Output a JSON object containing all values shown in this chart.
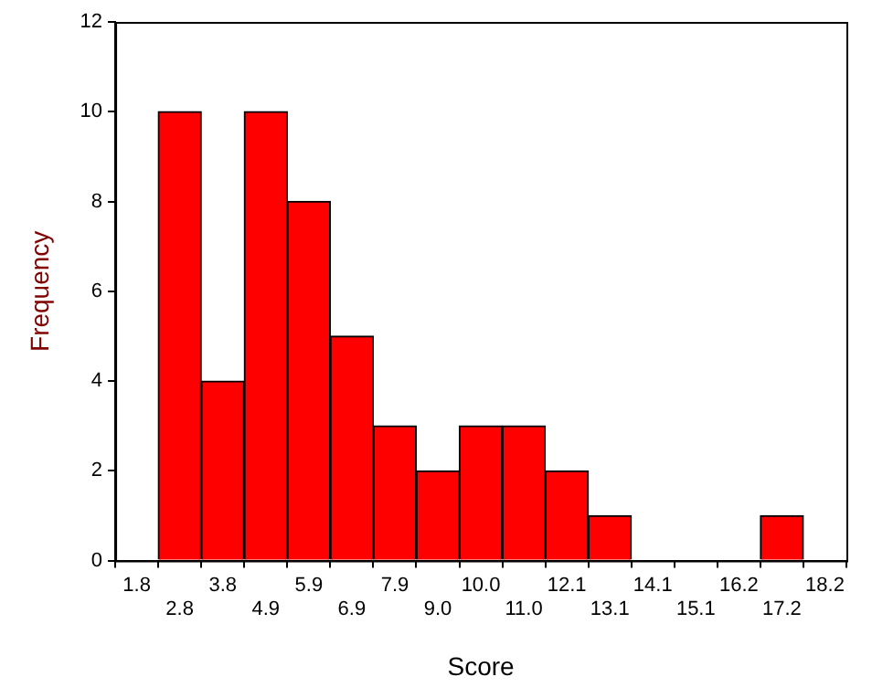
{
  "chart_data": {
    "type": "bar",
    "xlabel": "Score",
    "ylabel": "Frequency",
    "categories": [
      "1.8",
      "2.8",
      "3.8",
      "4.9",
      "5.9",
      "6.9",
      "7.9",
      "9.0",
      "10.0",
      "11.0",
      "12.1",
      "13.1",
      "14.1",
      "15.1",
      "16.2",
      "17.2",
      "18.2"
    ],
    "values": [
      0,
      10,
      4,
      10,
      8,
      5,
      3,
      2,
      3,
      3,
      2,
      1,
      0,
      0,
      0,
      1,
      0
    ],
    "color": "#ff0000",
    "ylim": [
      0,
      12
    ],
    "yticks": [
      0,
      2,
      4,
      6,
      8,
      10,
      12
    ],
    "grid": false,
    "legend": false
  }
}
